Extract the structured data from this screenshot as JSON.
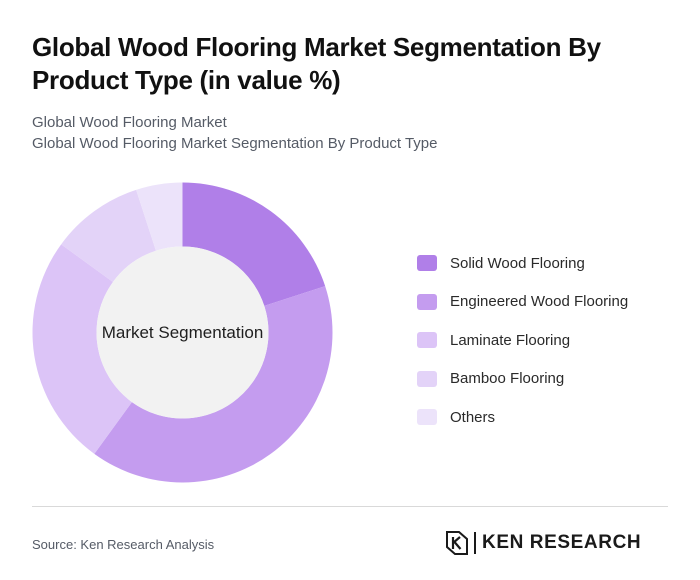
{
  "header": {
    "title": "Global Wood Flooring Market Segmentation By Product Type (in value %)",
    "subtitle_line1": "Global Wood Flooring Market",
    "subtitle_line2": "Global Wood Flooring Market Segmentation By Product Type"
  },
  "chart_data": {
    "type": "pie",
    "center_label": "Market Segmentation",
    "categories": [
      "Solid Wood Flooring",
      "Engineered Wood Flooring",
      "Laminate Flooring",
      "Bamboo Flooring",
      "Others"
    ],
    "values": [
      20,
      40,
      25,
      10,
      5
    ],
    "colors": [
      "#b07fe8",
      "#c49cef",
      "#dcc4f7",
      "#e3d3f8",
      "#ece3fa"
    ],
    "legend_position": "right"
  },
  "footer": {
    "source": "Source: Ken Research Analysis",
    "brand_name": "KEN RESEARCH"
  }
}
